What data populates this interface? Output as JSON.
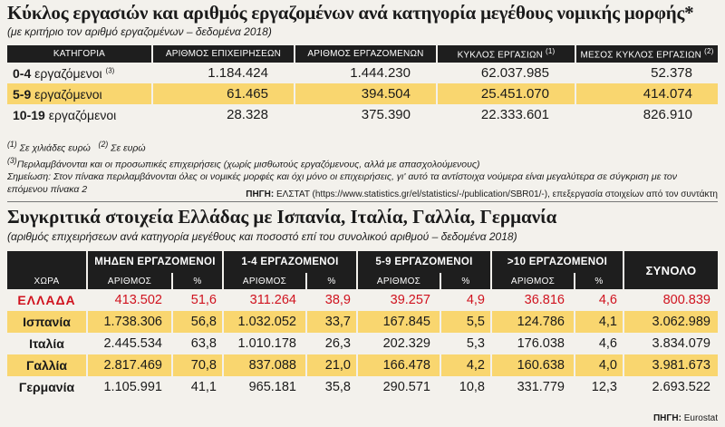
{
  "section1": {
    "title": "Κύκλος εργασιών και αριθμός εργαζομένων ανά κατηγορία μεγέθους νομικής μορφής*",
    "subtitle": "(με κριτήριο τον αριθμό εργαζομένων – δεδομένα 2018)",
    "headers": [
      "ΚΑΤΗΓΟΡΙΑ",
      "ΑΡΙΘΜΟΣ ΕΠΙΧΕΙΡΗΣΕΩΝ",
      "ΑΡΙΘΜΟΣ ΕΡΓΑΖΟΜΕΝΩΝ",
      "ΚΥΚΛΟΣ ΕΡΓΑΣΙΩΝ",
      "ΜΕΣΟΣ ΚΥΚΛΟΣ ΕΡΓΑΣΙΩΝ"
    ],
    "header_sups": {
      "turnover": "(1)",
      "avg_turnover": "(2)"
    },
    "rows": [
      {
        "cat_bold": "0-4",
        "cat_rest": "εργαζόμενοι",
        "sup": "(3)",
        "firms": "1.184.424",
        "employees": "1.444.230",
        "turnover": "62.037.985",
        "avg": "52.378"
      },
      {
        "cat_bold": "5-9",
        "cat_rest": "εργαζόμενοι",
        "sup": "",
        "firms": "61.465",
        "employees": "394.504",
        "turnover": "25.451.070",
        "avg": "414.074"
      },
      {
        "cat_bold": "10-19",
        "cat_rest": "εργαζόμενοι",
        "sup": "",
        "firms": "28.328",
        "employees": "375.390",
        "turnover": "22.333.601",
        "avg": "826.910"
      }
    ],
    "notes": {
      "n1_mark": "(1)",
      "n1": "Σε χιλιάδες ευρώ",
      "n2_mark": "(2)",
      "n2": "Σε ευρώ",
      "n3_mark": "(3)",
      "n3": "Περιλαμβάνονται και οι προσωπικές επιχειρήσεις (χωρίς μισθωτούς εργαζόμενους, αλλά με απασχολούμενους)",
      "n4": "Σημείωση: Στον πίνακα περιλαμβάνονται όλες οι νομικές μορφές και όχι μόνο οι επιχειρήσεις, γι' αυτό τα αντίστοιχα νούμερα είναι μεγαλύτερα σε σύγκριση με τον επόμενου πίνακα 2"
    },
    "source_label": "ΠΗΓΗ:",
    "source_text": "ΕΛΣΤΑΤ (https://www.statistics.gr/el/statistics/-/publication/SBR01/-), επεξεργασία στοιχείων από τον συντάκτη"
  },
  "section2": {
    "title": "Συγκριτικά στοιχεία Ελλάδας με Ισπανία, Ιταλία, Γαλλία, Γερμανία",
    "subtitle": "(αριθμός επιχειρήσεων ανά κατηγορία μεγέθους και ποσοστό επί του συνολικού αριθμού – δεδομένα 2018)",
    "groups": [
      "ΜΗΔΕΝ ΕΡΓΑΖΟΜΕΝΟΙ",
      "1-4 ΕΡΓΑΖΟΜΕΝΟΙ",
      "5-9 ΕΡΓΑΖΟΜΕΝΟΙ",
      ">10 ΕΡΓΑΖΟΜΕΝΟΙ"
    ],
    "total_label": "ΣΥΝΟΛΟ",
    "country_label": "ΧΩΡΑ",
    "count_label": "ΑΡΙΘΜΟΣ",
    "pct_label": "%",
    "rows": [
      {
        "country": "ΕΛΛΑΔΑ",
        "v": [
          "413.502",
          "51,6",
          "311.264",
          "38,9",
          "39.257",
          "4,9",
          "36.816",
          "4,6"
        ],
        "total": "800.839"
      },
      {
        "country": "Ισπανία",
        "v": [
          "1.738.306",
          "56,8",
          "1.032.052",
          "33,7",
          "167.845",
          "5,5",
          "124.786",
          "4,1"
        ],
        "total": "3.062.989"
      },
      {
        "country": "Ιταλία",
        "v": [
          "2.445.534",
          "63,8",
          "1.010.178",
          "26,3",
          "202.329",
          "5,3",
          "176.038",
          "4,6"
        ],
        "total": "3.834.079"
      },
      {
        "country": "Γαλλία",
        "v": [
          "2.817.469",
          "70,8",
          "837.088",
          "21,0",
          "166.478",
          "4,2",
          "160.638",
          "4,0"
        ],
        "total": "3.981.673"
      },
      {
        "country": "Γερμανία",
        "v": [
          "1.105.991",
          "41,1",
          "965.181",
          "35,8",
          "290.571",
          "10,8",
          "331.779",
          "12,3"
        ],
        "total": "2.693.522"
      }
    ],
    "source_label": "ΠΗΓΗ:",
    "source_text": "Eurostat"
  },
  "colors": {
    "highlight": "#f9d66f",
    "header_bg": "#1e1e1e",
    "greece_red": "#d0131f",
    "page_bg": "#f3f1ec"
  }
}
